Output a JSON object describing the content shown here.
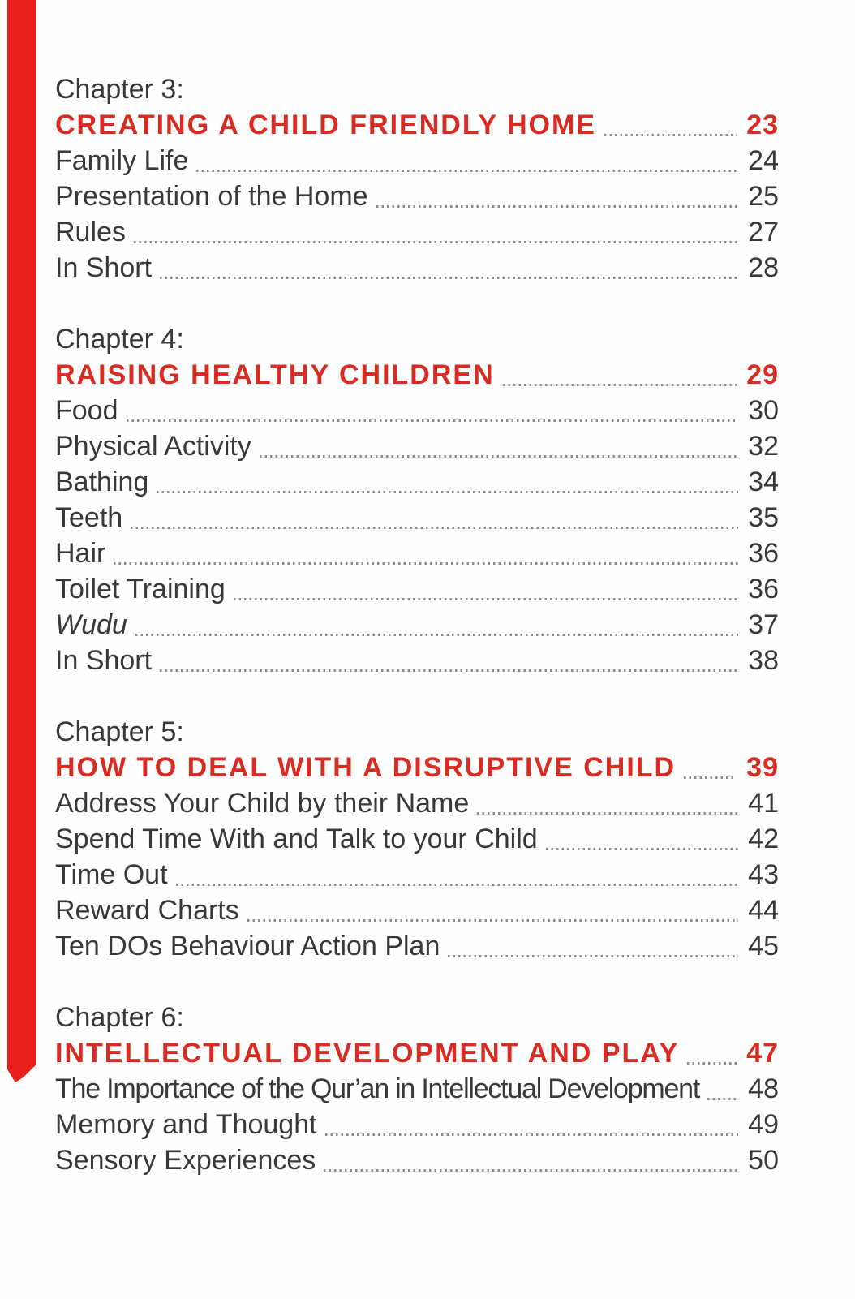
{
  "page": {
    "background": "#fefefe",
    "text_color": "#383838",
    "accent_red": "#d92b21",
    "ribbon_color": "#e9201c",
    "leader_color": "#8c8c8c"
  },
  "ribbon": {
    "name": "red-edge-ribbon",
    "visible": true
  },
  "toc": {
    "sections": [
      {
        "chapter_label": "Chapter 3:",
        "heading": {
          "title": "CREATING A CHILD FRIENDLY HOME",
          "page": "23"
        },
        "items": [
          {
            "title": "Family Life",
            "page": "24"
          },
          {
            "title": "Presentation of the Home",
            "page": "25"
          },
          {
            "title": "Rules",
            "page": "27"
          },
          {
            "title": "In Short",
            "page": "28"
          }
        ]
      },
      {
        "chapter_label": "Chapter 4:",
        "heading": {
          "title": "RAISING HEALTHY CHILDREN",
          "page": "29"
        },
        "items": [
          {
            "title": "Food",
            "page": "30"
          },
          {
            "title": "Physical Activity",
            "page": "32"
          },
          {
            "title": "Bathing",
            "page": "34"
          },
          {
            "title": "Teeth",
            "page": "35"
          },
          {
            "title": "Hair",
            "page": "36"
          },
          {
            "title": "Toilet Training",
            "page": "36"
          },
          {
            "title": "Wudu",
            "page": "37",
            "italic": true
          },
          {
            "title": "In Short",
            "page": "38"
          }
        ]
      },
      {
        "chapter_label": "Chapter 5:",
        "heading": {
          "title": "HOW TO DEAL WITH A DISRUPTIVE CHILD",
          "page": "39"
        },
        "items": [
          {
            "title": "Address Your Child by their Name",
            "page": "41"
          },
          {
            "title": "Spend Time With and Talk to your Child",
            "page": "42"
          },
          {
            "title": "Time Out",
            "page": "43"
          },
          {
            "title": "Reward Charts",
            "page": "44"
          },
          {
            "title": "Ten DOs Behaviour Action Plan",
            "page": "45"
          }
        ]
      },
      {
        "chapter_label": "Chapter 6:",
        "heading": {
          "title": "INTELLECTUAL DEVELOPMENT AND PLAY",
          "page": "47"
        },
        "items": [
          {
            "title": "The Importance of the Qur’an in Intellectual Development",
            "page": "48"
          },
          {
            "title": "Memory and Thought",
            "page": "49"
          },
          {
            "title": "Sensory Experiences",
            "page": "50"
          }
        ]
      }
    ]
  }
}
